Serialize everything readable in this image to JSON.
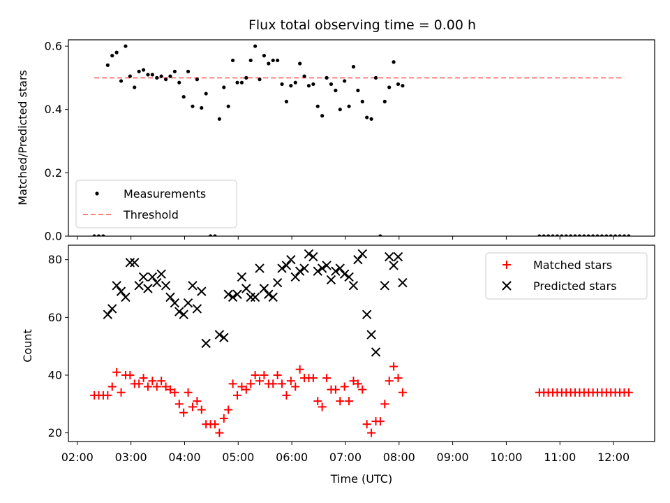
{
  "chart_data": [
    {
      "type": "scatter",
      "title": "Flux total observing time = 0.00 h",
      "xlabel": "",
      "ylabel": "Matched/Predicted stars",
      "xlim": [
        "01:50",
        "12:46"
      ],
      "ylim": [
        0,
        0.62
      ],
      "yticks": [
        0.0,
        0.2,
        0.4,
        0.6
      ],
      "ytick_labels": [
        "0.0",
        "0.2",
        "0.4",
        "0.6"
      ],
      "legend_position": "lower-left",
      "series": [
        {
          "name": "Measurements",
          "style": "dot",
          "color": "#000000",
          "points": [
            [
              "02:19",
              0
            ],
            [
              "02:24",
              0
            ],
            [
              "02:29",
              0
            ],
            [
              "02:34",
              0.54
            ],
            [
              "02:39",
              0.57
            ],
            [
              "02:44",
              0.58
            ],
            [
              "02:49",
              0.49
            ],
            [
              "02:54",
              0.6
            ],
            [
              "02:59",
              0.505
            ],
            [
              "03:04",
              0.47
            ],
            [
              "03:09",
              0.52
            ],
            [
              "03:14",
              0.525
            ],
            [
              "03:19",
              0.51
            ],
            [
              "03:24",
              0.51
            ],
            [
              "03:29",
              0.5
            ],
            [
              "03:34",
              0.505
            ],
            [
              "03:39",
              0.495
            ],
            [
              "03:44",
              0.505
            ],
            [
              "03:49",
              0.52
            ],
            [
              "03:54",
              0.485
            ],
            [
              "03:59",
              0.44
            ],
            [
              "04:04",
              0.52
            ],
            [
              "04:09",
              0.41
            ],
            [
              "04:14",
              0.495
            ],
            [
              "04:19",
              0.405
            ],
            [
              "04:24",
              0.45
            ],
            [
              "04:29",
              0
            ],
            [
              "04:34",
              0
            ],
            [
              "04:39",
              0.37
            ],
            [
              "04:44",
              0.47
            ],
            [
              "04:49",
              0.41
            ],
            [
              "04:54",
              0.555
            ],
            [
              "04:59",
              0.485
            ],
            [
              "05:04",
              0.485
            ],
            [
              "05:09",
              0.5
            ],
            [
              "05:14",
              0.555
            ],
            [
              "05:19",
              0.6
            ],
            [
              "05:24",
              0.495
            ],
            [
              "05:29",
              0.57
            ],
            [
              "05:34",
              0.545
            ],
            [
              "05:39",
              0.555
            ],
            [
              "05:44",
              0.555
            ],
            [
              "05:49",
              0.48
            ],
            [
              "05:54",
              0.425
            ],
            [
              "05:59",
              0.475
            ],
            [
              "06:04",
              0.485
            ],
            [
              "06:09",
              0.545
            ],
            [
              "06:14",
              0.505
            ],
            [
              "06:19",
              0.475
            ],
            [
              "06:24",
              0.48
            ],
            [
              "06:29",
              0.41
            ],
            [
              "06:34",
              0.38
            ],
            [
              "06:39",
              0.5
            ],
            [
              "06:44",
              0.48
            ],
            [
              "06:49",
              0.46
            ],
            [
              "06:54",
              0.4
            ],
            [
              "06:59",
              0.49
            ],
            [
              "07:04",
              0.41
            ],
            [
              "07:09",
              0.535
            ],
            [
              "07:14",
              0.46
            ],
            [
              "07:19",
              0.425
            ],
            [
              "07:24",
              0.375
            ],
            [
              "07:29",
              0.37
            ],
            [
              "07:34",
              0.5
            ],
            [
              "07:39",
              0
            ],
            [
              "07:44",
              0.425
            ],
            [
              "07:49",
              0.47
            ],
            [
              "07:54",
              0.55
            ],
            [
              "07:59",
              0.48
            ],
            [
              "08:04",
              0.475
            ],
            [
              "10:37",
              0
            ],
            [
              "10:42",
              0
            ],
            [
              "10:47",
              0
            ],
            [
              "10:52",
              0
            ],
            [
              "10:57",
              0
            ],
            [
              "11:02",
              0
            ],
            [
              "11:07",
              0
            ],
            [
              "11:12",
              0
            ],
            [
              "11:17",
              0
            ],
            [
              "11:22",
              0
            ],
            [
              "11:27",
              0
            ],
            [
              "11:32",
              0
            ],
            [
              "11:37",
              0
            ],
            [
              "11:42",
              0
            ],
            [
              "11:47",
              0
            ],
            [
              "11:52",
              0
            ],
            [
              "11:57",
              0
            ],
            [
              "12:02",
              0
            ],
            [
              "12:07",
              0
            ],
            [
              "12:12",
              0
            ],
            [
              "12:17",
              0
            ]
          ]
        },
        {
          "name": "Threshold",
          "style": "dashed-line",
          "color": "#ff7f7f",
          "points": [
            [
              "02:19",
              0.5
            ],
            [
              "12:12",
              0.5
            ]
          ]
        }
      ]
    },
    {
      "type": "scatter",
      "title": "",
      "xlabel": "Time (UTC)",
      "ylabel": "Count",
      "xlim": [
        "01:50",
        "12:46"
      ],
      "ylim": [
        17,
        85
      ],
      "yticks": [
        20,
        40,
        60,
        80
      ],
      "ytick_labels": [
        "20",
        "40",
        "60",
        "80"
      ],
      "xticks": [
        "02:00",
        "03:00",
        "04:00",
        "05:00",
        "06:00",
        "07:00",
        "08:00",
        "09:00",
        "10:00",
        "11:00",
        "12:00"
      ],
      "legend_position": "upper-right",
      "series": [
        {
          "name": "Matched stars",
          "marker": "plus",
          "color": "#ff0000",
          "points": [
            [
              "02:19",
              33
            ],
            [
              "02:24",
              33
            ],
            [
              "02:29",
              33
            ],
            [
              "02:34",
              33
            ],
            [
              "02:39",
              36
            ],
            [
              "02:44",
              41
            ],
            [
              "02:49",
              34
            ],
            [
              "02:54",
              40
            ],
            [
              "02:59",
              40
            ],
            [
              "03:04",
              37
            ],
            [
              "03:09",
              37
            ],
            [
              "03:14",
              39
            ],
            [
              "03:19",
              36
            ],
            [
              "03:24",
              38
            ],
            [
              "03:29",
              36
            ],
            [
              "03:34",
              38
            ],
            [
              "03:39",
              36
            ],
            [
              "03:44",
              35
            ],
            [
              "03:49",
              34
            ],
            [
              "03:54",
              30
            ],
            [
              "03:59",
              27
            ],
            [
              "04:04",
              34
            ],
            [
              "04:09",
              29
            ],
            [
              "04:14",
              31
            ],
            [
              "04:19",
              28
            ],
            [
              "04:24",
              23
            ],
            [
              "04:29",
              23
            ],
            [
              "04:34",
              23
            ],
            [
              "04:39",
              20
            ],
            [
              "04:44",
              25
            ],
            [
              "04:49",
              28
            ],
            [
              "04:54",
              37
            ],
            [
              "04:59",
              33
            ],
            [
              "05:04",
              36
            ],
            [
              "05:09",
              35
            ],
            [
              "05:14",
              37
            ],
            [
              "05:19",
              40
            ],
            [
              "05:24",
              38
            ],
            [
              "05:29",
              40
            ],
            [
              "05:34",
              37
            ],
            [
              "05:39",
              37
            ],
            [
              "05:44",
              40
            ],
            [
              "05:49",
              37
            ],
            [
              "05:54",
              33
            ],
            [
              "05:59",
              38
            ],
            [
              "06:04",
              36
            ],
            [
              "06:09",
              42
            ],
            [
              "06:14",
              39
            ],
            [
              "06:19",
              39
            ],
            [
              "06:24",
              39
            ],
            [
              "06:29",
              31
            ],
            [
              "06:34",
              29
            ],
            [
              "06:39",
              39
            ],
            [
              "06:44",
              35
            ],
            [
              "06:49",
              35
            ],
            [
              "06:54",
              31
            ],
            [
              "06:59",
              36
            ],
            [
              "07:04",
              31
            ],
            [
              "07:09",
              38
            ],
            [
              "07:14",
              37
            ],
            [
              "07:19",
              35
            ],
            [
              "07:24",
              23
            ],
            [
              "07:29",
              20
            ],
            [
              "07:34",
              24
            ],
            [
              "07:39",
              24
            ],
            [
              "07:44",
              30
            ],
            [
              "07:49",
              38
            ],
            [
              "07:54",
              43
            ],
            [
              "07:59",
              39
            ],
            [
              "08:04",
              34
            ],
            [
              "10:37",
              34
            ],
            [
              "10:42",
              34
            ],
            [
              "10:47",
              34
            ],
            [
              "10:52",
              34
            ],
            [
              "10:57",
              34
            ],
            [
              "11:02",
              34
            ],
            [
              "11:07",
              34
            ],
            [
              "11:12",
              34
            ],
            [
              "11:17",
              34
            ],
            [
              "11:22",
              34
            ],
            [
              "11:27",
              34
            ],
            [
              "11:32",
              34
            ],
            [
              "11:37",
              34
            ],
            [
              "11:42",
              34
            ],
            [
              "11:47",
              34
            ],
            [
              "11:52",
              34
            ],
            [
              "11:57",
              34
            ],
            [
              "12:02",
              34
            ],
            [
              "12:07",
              34
            ],
            [
              "12:12",
              34
            ],
            [
              "12:17",
              34
            ]
          ]
        },
        {
          "name": "Predicted stars",
          "marker": "x",
          "color": "#000000",
          "points": [
            [
              "02:34",
              61
            ],
            [
              "02:39",
              63
            ],
            [
              "02:44",
              71
            ],
            [
              "02:49",
              69
            ],
            [
              "02:54",
              67
            ],
            [
              "02:59",
              79
            ],
            [
              "03:04",
              79
            ],
            [
              "03:09",
              71
            ],
            [
              "03:14",
              74
            ],
            [
              "03:19",
              70
            ],
            [
              "03:24",
              74
            ],
            [
              "03:29",
              72
            ],
            [
              "03:34",
              75
            ],
            [
              "03:39",
              71
            ],
            [
              "03:44",
              67
            ],
            [
              "03:49",
              65
            ],
            [
              "03:54",
              62
            ],
            [
              "03:59",
              61
            ],
            [
              "04:04",
              65
            ],
            [
              "04:09",
              71
            ],
            [
              "04:14",
              63
            ],
            [
              "04:19",
              69
            ],
            [
              "04:24",
              51
            ],
            [
              "04:39",
              54
            ],
            [
              "04:44",
              53
            ],
            [
              "04:49",
              68
            ],
            [
              "04:54",
              67
            ],
            [
              "04:59",
              68
            ],
            [
              "05:04",
              74
            ],
            [
              "05:09",
              70
            ],
            [
              "05:14",
              67
            ],
            [
              "05:19",
              67
            ],
            [
              "05:24",
              77
            ],
            [
              "05:29",
              70
            ],
            [
              "05:34",
              68
            ],
            [
              "05:39",
              67
            ],
            [
              "05:44",
              72
            ],
            [
              "05:49",
              77
            ],
            [
              "05:54",
              78
            ],
            [
              "05:59",
              80
            ],
            [
              "06:04",
              74
            ],
            [
              "06:09",
              76
            ],
            [
              "06:14",
              77
            ],
            [
              "06:19",
              82
            ],
            [
              "06:24",
              81
            ],
            [
              "06:29",
              76
            ],
            [
              "06:34",
              77
            ],
            [
              "06:39",
              78
            ],
            [
              "06:44",
              73
            ],
            [
              "06:49",
              76
            ],
            [
              "06:54",
              77
            ],
            [
              "06:59",
              75
            ],
            [
              "07:04",
              74
            ],
            [
              "07:09",
              71
            ],
            [
              "07:14",
              80
            ],
            [
              "07:19",
              82
            ],
            [
              "07:24",
              61
            ],
            [
              "07:29",
              54
            ],
            [
              "07:34",
              48
            ],
            [
              "07:44",
              71
            ],
            [
              "07:49",
              81
            ],
            [
              "07:54",
              78
            ],
            [
              "07:59",
              81
            ],
            [
              "08:04",
              72
            ]
          ]
        }
      ]
    }
  ]
}
